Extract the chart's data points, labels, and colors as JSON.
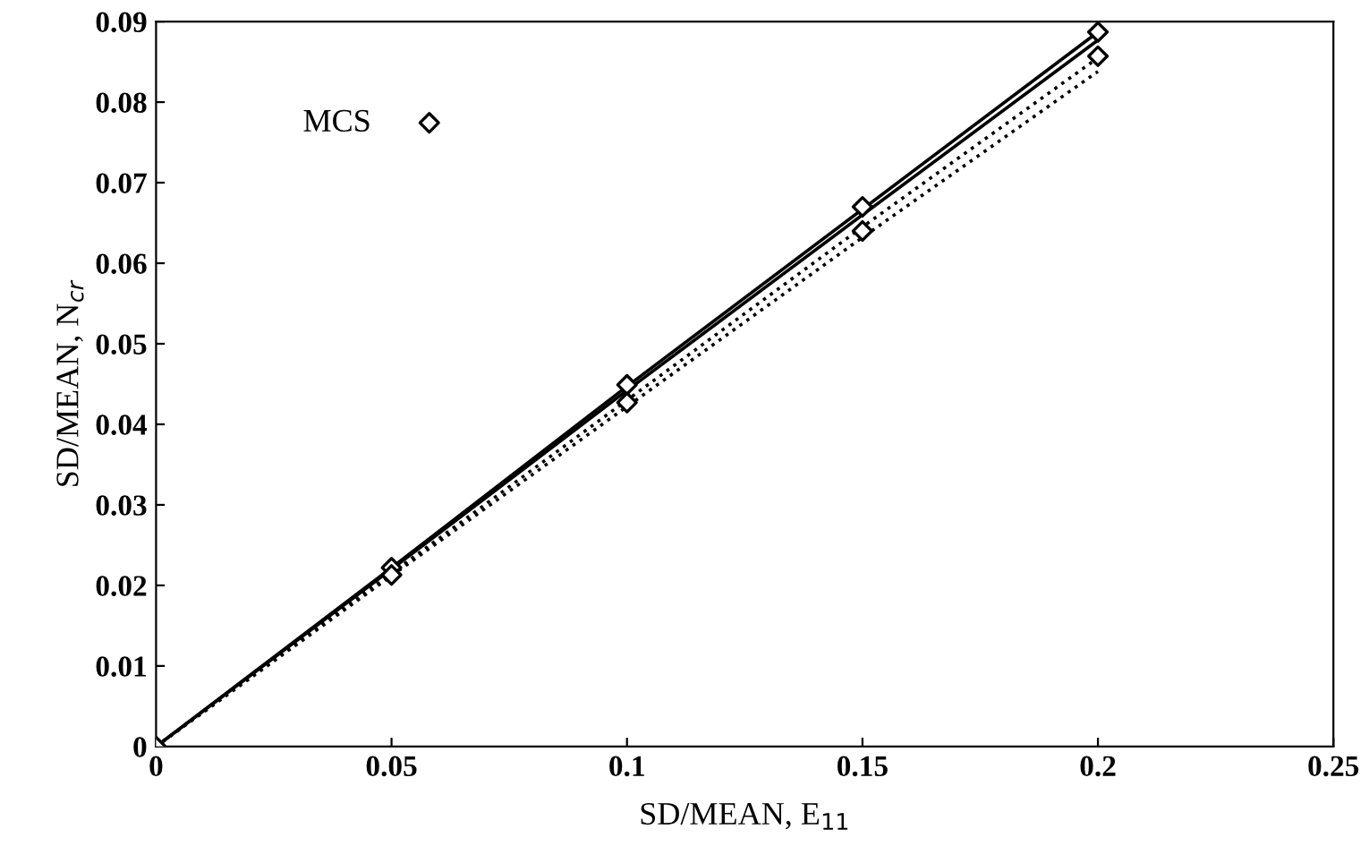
{
  "chart_data": {
    "type": "line",
    "xlabel": "SD/MEAN, E$_{11}$",
    "ylabel": "SD/MEAN, N$_{cr}$",
    "xlim": [
      0,
      0.25
    ],
    "ylim": [
      0,
      0.09
    ],
    "xticks": [
      0,
      0.05,
      0.1,
      0.15,
      0.2,
      0.25
    ],
    "yticks": [
      0,
      0.01,
      0.02,
      0.03,
      0.04,
      0.05,
      0.06,
      0.07,
      0.08,
      0.09
    ],
    "grid": false,
    "legend": "top left",
    "series": [
      {
        "line_style": "solid",
        "color": "#000000",
        "x": [
          0,
          0.05,
          0.1,
          0.15,
          0.2
        ],
        "values": [
          0,
          0.0222,
          0.0447,
          0.0667,
          0.0887
        ]
      },
      {
        "line_style": "solid",
        "color": "#000000",
        "x": [
          0,
          0.05,
          0.1,
          0.15,
          0.2
        ],
        "values": [
          0,
          0.022,
          0.0442,
          0.066,
          0.0877
        ]
      },
      {
        "line_style": "dotted",
        "color": "#000000",
        "x": [
          0,
          0.05,
          0.1,
          0.15,
          0.2
        ],
        "values": [
          0,
          0.0215,
          0.043,
          0.0645,
          0.0855
        ]
      },
      {
        "line_style": "dotted",
        "color": "#000000",
        "x": [
          0,
          0.05,
          0.1,
          0.15,
          0.2
        ],
        "values": [
          0,
          0.0212,
          0.0422,
          0.0632,
          0.0838
        ]
      },
      {
        "type": "scatter",
        "name": "MCS",
        "marker": "diamond",
        "color": "#000000",
        "x": [
          0,
          0.05,
          0.1,
          0.15,
          0.2,
          0.05,
          0.1,
          0.15,
          0.2
        ],
        "values": [
          0,
          0.0222,
          0.0449,
          0.067,
          0.0887,
          0.0213,
          0.0427,
          0.064,
          0.0857
        ]
      }
    ]
  }
}
